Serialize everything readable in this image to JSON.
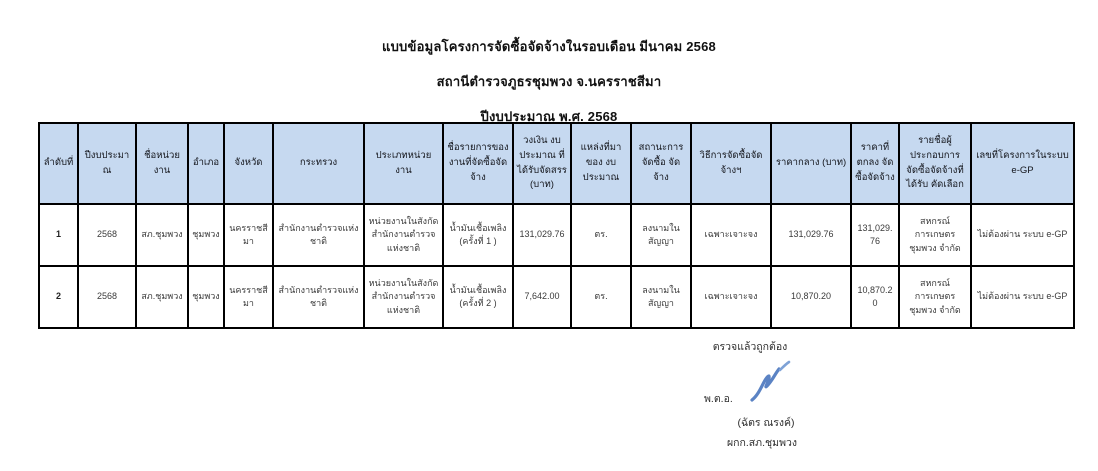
{
  "page": {
    "title_lines": [
      "แบบข้อมูลโครงการจัดซื้อจัดจ้างในรอบเดือน มีนาคม 2568",
      "สถานีตำรวจภูธรชุมพวง จ.นครราชสีมา",
      "ปีงบประมาณ พ.ศ. 2568"
    ]
  },
  "table": {
    "header_bg": "#c6d9f0",
    "border_color": "#000000",
    "columns": [
      "ลำดับที่",
      "ปีงบประมาณ",
      "ชื่อหน่วยงาน",
      "อำเภอ",
      "จังหวัด",
      "กระทรวง",
      "ประเภทหน่วยงาน",
      "ชื่อรายการของงานที่จัดซื้อจัดจ้าง",
      "วงเงิน งบประมาณ ที่ได้รับจัดสรร (บาท)",
      "แหล่งที่มาของ งบประมาณ",
      "สถานะการจัดซื้อ จัดจ้าง",
      "วิธีการจัดซื้อจัดจ้างฯ",
      "ราคากลาง (บาท)",
      "ราคาที่ตกลง จัดซื้อจัดจ้าง",
      "รายชื่อผู้ประกอบการ จัดซื้อจัดจ้างที่ได้รับ คัดเลือก",
      "เลขที่โครงการในระบบ e-GP"
    ],
    "rows": [
      [
        "1",
        "2568",
        "สภ.ชุมพวง",
        "ชุมพวง",
        "นครราชสีมา",
        "สำนักงานตำรวจแห่งชาติ",
        "หน่วยงานในสังกัด สำนักงานตำรวจ แห่งชาติ",
        "น้ำมันเชื้อเพลิง (ครั้งที่ 1 )",
        "131,029.76",
        "ตร.",
        "ลงนามในสัญญา",
        "เฉพาะเจาะจง",
        "131,029.76",
        "131,029.76",
        "สหกรณ์การเกษตร ชุมพวง จำกัด",
        "ไม่ต้องผ่าน ระบบ e-GP"
      ],
      [
        "2",
        "2568",
        "สภ.ชุมพวง",
        "ชุมพวง",
        "นครราชสีมา",
        "สำนักงานตำรวจแห่งชาติ",
        "หน่วยงานในสังกัด สำนักงานตำรวจ แห่งชาติ",
        "น้ำมันเชื้อเพลิง (ครั้งที่ 2 )",
        "7,642.00",
        "ตร.",
        "ลงนามในสัญญา",
        "เฉพาะเจาะจง",
        "10,870.20",
        "10,870.20",
        "สหกรณ์การเกษตร ชุมพวง จำกัด",
        "ไม่ต้องผ่าน ระบบ e-GP"
      ]
    ]
  },
  "footer": {
    "verified_text": "ตรวจแล้วถูกต้อง",
    "rank": "พ.ต.อ.",
    "name": "(ฉัตร ณรงค์)",
    "position": "ผกก.สภ.ชุมพวง",
    "signature_icon": "signature-scribble",
    "signature_color": "#5b83c4"
  }
}
